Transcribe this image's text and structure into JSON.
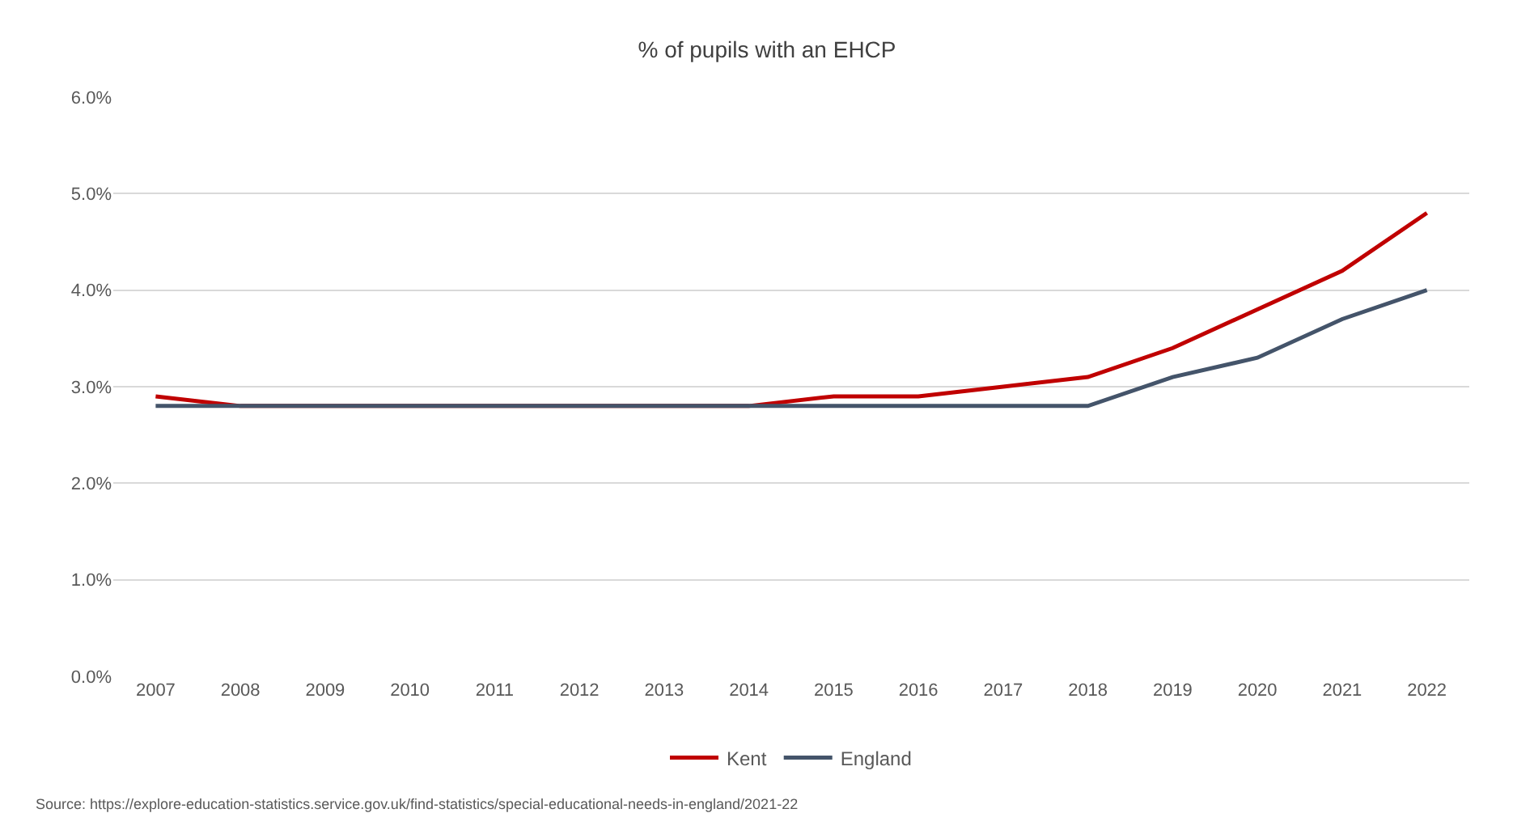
{
  "chart_data": {
    "type": "line",
    "title": "% of pupils with an EHCP",
    "categories": [
      "2007",
      "2008",
      "2009",
      "2010",
      "2011",
      "2012",
      "2013",
      "2014",
      "2015",
      "2016",
      "2017",
      "2018",
      "2019",
      "2020",
      "2021",
      "2022"
    ],
    "series": [
      {
        "name": "Kent",
        "color": "#c00000",
        "values": [
          2.9,
          2.8,
          2.8,
          2.8,
          2.8,
          2.8,
          2.8,
          2.8,
          2.9,
          2.9,
          3.0,
          3.1,
          3.4,
          3.8,
          4.2,
          4.8
        ]
      },
      {
        "name": "England",
        "color": "#44546a",
        "values": [
          2.8,
          2.8,
          2.8,
          2.8,
          2.8,
          2.8,
          2.8,
          2.8,
          2.8,
          2.8,
          2.8,
          2.8,
          3.1,
          3.3,
          3.7,
          4.0
        ]
      }
    ],
    "ylim": [
      0,
      6
    ],
    "yticks": [
      {
        "value": 0,
        "label": "0.0%"
      },
      {
        "value": 1,
        "label": "1.0%"
      },
      {
        "value": 2,
        "label": "2.0%"
      },
      {
        "value": 3,
        "label": "3.0%"
      },
      {
        "value": 4,
        "label": "4.0%"
      },
      {
        "value": 5,
        "label": "5.0%"
      },
      {
        "value": 6,
        "label": "6.0%"
      }
    ],
    "grid": "y",
    "legend": "bottom",
    "marker": "none",
    "line_style": "solid",
    "annotations": [
      "Source: https://explore-education-statistics.service.gov.uk/find-statistics/special-educational-needs-in-england/2021-22"
    ]
  }
}
